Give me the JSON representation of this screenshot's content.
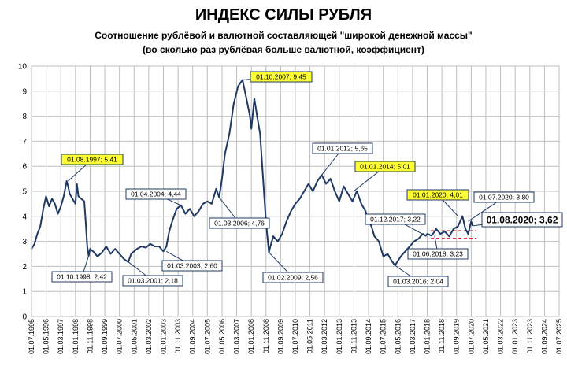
{
  "chart_data": {
    "type": "line",
    "title": "ИНДЕКС СИЛЫ РУБЛЯ",
    "subtitle_1": "Соотношение рублёвой и валютной  составляющей \"широкой денежной массы\"",
    "subtitle_2": "(во сколько раз рублёвая больше валютной,  коэффициент)",
    "xlabel": "",
    "ylabel": "",
    "ylim": [
      0,
      10
    ],
    "yticks": [
      "0",
      "1",
      "2",
      "3",
      "4",
      "5",
      "6",
      "7",
      "8",
      "9",
      "10"
    ],
    "xlim": [
      1995.5,
      2025.5
    ],
    "x_tick_labels": [
      "01.07.1995",
      "01.05.1996",
      "01.03.1997",
      "01.01.1998",
      "01.11.1998",
      "01.09.1999",
      "01.07.2000",
      "01.05.2001",
      "01.03.2002",
      "01.01.2003",
      "01.11.2003",
      "01.09.2004",
      "01.07.2005",
      "01.05.2006",
      "01.03.2007",
      "01.01.2008",
      "01.11.2008",
      "01.09.2009",
      "01.07.2010",
      "01.05.2011",
      "01.03.2012",
      "01.01.2013",
      "01.11.2013",
      "01.09.2014",
      "01.07.2015",
      "01.05.2016",
      "01.03.2017",
      "01.01.2018",
      "01.11.2018",
      "01.09.2019",
      "01.07.2020",
      "01.05.2021",
      "01.03.2022",
      "01.01.2023",
      "01.11.2023",
      "01.09.2024",
      "01.07.2025"
    ],
    "grid": true,
    "line_color": "#1f3864",
    "series": [
      {
        "x": [
          1995.5,
          1995.67,
          1995.83,
          1996.0,
          1996.17,
          1996.33,
          1996.5,
          1996.67,
          1996.83,
          1997.0,
          1997.17,
          1997.33,
          1997.5,
          1997.58,
          1997.67,
          1997.83,
          1998.0,
          1998.08,
          1998.17,
          1998.33,
          1998.5,
          1998.58,
          1998.67,
          1998.75,
          1998.83,
          1999.0,
          1999.25,
          1999.5,
          1999.75,
          2000.0,
          2000.25,
          2000.5,
          2000.75,
          2001.0,
          2001.17,
          2001.33,
          2001.5,
          2001.75,
          2002.0,
          2002.25,
          2002.5,
          2002.75,
          2003.0,
          2003.17,
          2003.33,
          2003.5,
          2003.75,
          2004.0,
          2004.25,
          2004.5,
          2004.75,
          2005.0,
          2005.25,
          2005.5,
          2005.75,
          2006.0,
          2006.17,
          2006.33,
          2006.5,
          2006.75,
          2007.0,
          2007.25,
          2007.5,
          2007.75,
          2007.92,
          2008.0,
          2008.17,
          2008.33,
          2008.5,
          2008.67,
          2008.83,
          2009.0,
          2009.08,
          2009.25,
          2009.5,
          2009.75,
          2010.0,
          2010.25,
          2010.5,
          2010.75,
          2011.0,
          2011.25,
          2011.5,
          2011.75,
          2012.0,
          2012.25,
          2012.5,
          2012.75,
          2013.0,
          2013.25,
          2013.5,
          2013.75,
          2014.0,
          2014.25,
          2014.5,
          2014.67,
          2014.83,
          2015.0,
          2015.25,
          2015.5,
          2015.75,
          2016.0,
          2016.17,
          2016.5,
          2016.75,
          2017.0,
          2017.25,
          2017.5,
          2017.75,
          2017.92,
          2018.0,
          2018.25,
          2018.42,
          2018.5,
          2018.75,
          2019.0,
          2019.25,
          2019.5,
          2019.75,
          2020.0,
          2020.17,
          2020.33,
          2020.5,
          2020.58
        ],
        "y": [
          2.7,
          2.9,
          3.3,
          3.6,
          4.3,
          4.8,
          4.4,
          4.7,
          4.5,
          4.1,
          4.4,
          4.8,
          5.41,
          5.2,
          4.9,
          4.7,
          4.5,
          5.3,
          4.8,
          4.7,
          4.6,
          3.8,
          2.8,
          2.42,
          2.7,
          2.6,
          2.4,
          2.55,
          2.8,
          2.5,
          2.7,
          2.5,
          2.3,
          2.18,
          2.5,
          2.6,
          2.7,
          2.8,
          2.75,
          2.9,
          2.8,
          2.8,
          2.6,
          2.8,
          3.4,
          3.8,
          4.3,
          4.44,
          4.1,
          4.3,
          4.0,
          4.2,
          4.5,
          4.6,
          4.5,
          5.1,
          4.76,
          5.5,
          6.5,
          7.3,
          8.5,
          9.2,
          9.45,
          8.6,
          8.0,
          7.5,
          8.7,
          8.0,
          7.3,
          5.5,
          3.8,
          2.56,
          2.8,
          3.2,
          3.0,
          3.3,
          3.8,
          4.2,
          4.5,
          4.7,
          5.0,
          5.3,
          5.0,
          5.4,
          5.65,
          5.3,
          5.5,
          5.0,
          4.6,
          5.2,
          4.9,
          4.6,
          5.01,
          4.5,
          4.2,
          3.8,
          3.6,
          3.2,
          3.0,
          2.4,
          2.5,
          2.2,
          2.04,
          2.4,
          2.6,
          2.8,
          3.0,
          3.1,
          3.3,
          3.22,
          3.3,
          3.23,
          3.4,
          3.5,
          3.3,
          3.4,
          3.2,
          3.5,
          3.6,
          4.01,
          3.5,
          3.3,
          3.8,
          3.62
        ]
      }
    ],
    "annotations": [
      {
        "label": "01.08.1997; 5,41",
        "highlight": true
      },
      {
        "label": "01.10.1998; 2,42",
        "highlight": false
      },
      {
        "label": "01.03.2001; 2,18",
        "highlight": false
      },
      {
        "label": "01.03.2003; 2,60",
        "highlight": false
      },
      {
        "label": "01.04.2004; 4,44",
        "highlight": false
      },
      {
        "label": "01.03.2006; 4,76",
        "highlight": false
      },
      {
        "label": "01.10.2007; 9,45",
        "highlight": true
      },
      {
        "label": "01.02.2009; 2,56",
        "highlight": false
      },
      {
        "label": "01.01.2012; 5,65",
        "highlight": false
      },
      {
        "label": "01.01.2014; 5,01",
        "highlight": true
      },
      {
        "label": "01.03.2016; 2,04",
        "highlight": false
      },
      {
        "label": "01.12.2017; 3,22",
        "highlight": false
      },
      {
        "label": "01.06.2018; 3,23",
        "highlight": false
      },
      {
        "label": "01.01.2020; 4,01",
        "highlight": true
      },
      {
        "label": "01.07.2020; 3,80",
        "highlight": false
      },
      {
        "label": "01.08.2020; 3,62",
        "highlight": false,
        "big": true
      }
    ],
    "reference_lines": [
      {
        "y": 3.43,
        "color": "#e03030",
        "style": "dashed"
      },
      {
        "y": 3.13,
        "color": "#e03030",
        "style": "dashed"
      }
    ]
  }
}
